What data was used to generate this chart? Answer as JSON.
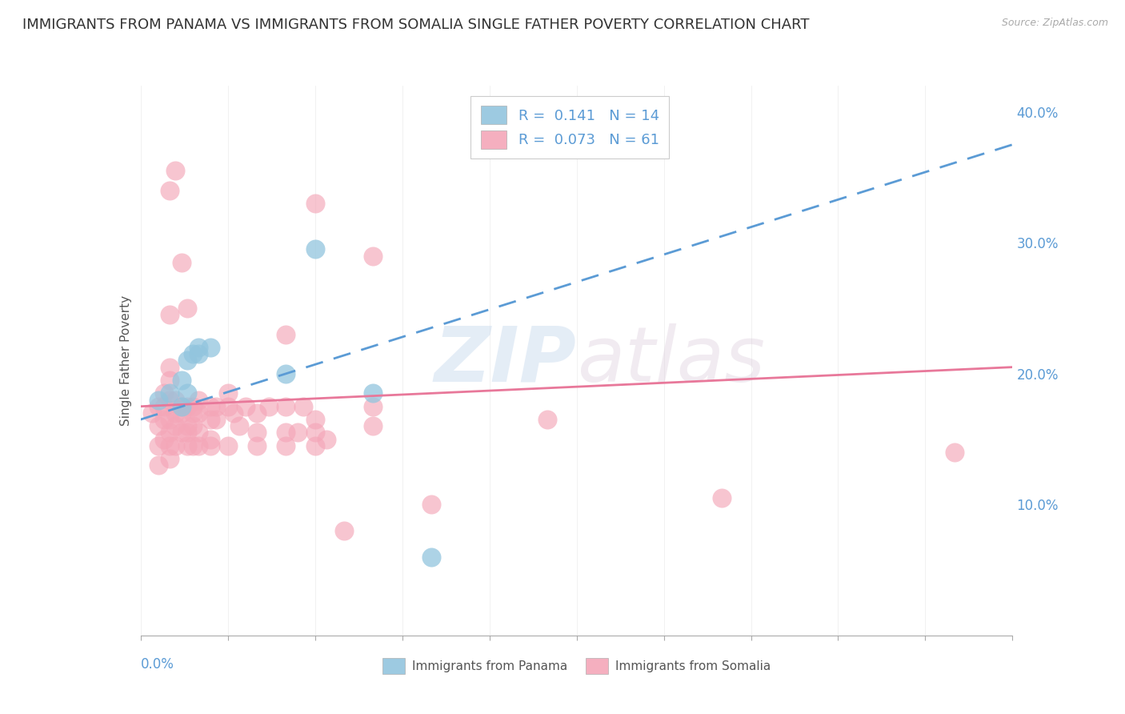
{
  "title": "IMMIGRANTS FROM PANAMA VS IMMIGRANTS FROM SOMALIA SINGLE FATHER POVERTY CORRELATION CHART",
  "source": "Source: ZipAtlas.com",
  "ylabel": "Single Father Poverty",
  "right_yticks": [
    "40.0%",
    "30.0%",
    "20.0%",
    "10.0%"
  ],
  "right_ytick_vals": [
    0.4,
    0.3,
    0.2,
    0.1
  ],
  "xlim": [
    0.0,
    0.15
  ],
  "ylim": [
    0.0,
    0.42
  ],
  "panama_color": "#92c5de",
  "somalia_color": "#f4a6b8",
  "background_color": "#ffffff",
  "grid_color": "#d8d8d8",
  "panama_points": [
    [
      0.005,
      0.185
    ],
    [
      0.007,
      0.175
    ],
    [
      0.007,
      0.195
    ],
    [
      0.008,
      0.185
    ],
    [
      0.008,
      0.21
    ],
    [
      0.009,
      0.215
    ],
    [
      0.01,
      0.22
    ],
    [
      0.01,
      0.215
    ],
    [
      0.012,
      0.22
    ],
    [
      0.025,
      0.2
    ],
    [
      0.03,
      0.295
    ],
    [
      0.04,
      0.185
    ],
    [
      0.05,
      0.06
    ],
    [
      0.003,
      0.18
    ]
  ],
  "somalia_points": [
    [
      0.002,
      0.17
    ],
    [
      0.003,
      0.145
    ],
    [
      0.003,
      0.16
    ],
    [
      0.003,
      0.175
    ],
    [
      0.004,
      0.15
    ],
    [
      0.004,
      0.165
    ],
    [
      0.004,
      0.175
    ],
    [
      0.004,
      0.185
    ],
    [
      0.005,
      0.145
    ],
    [
      0.005,
      0.155
    ],
    [
      0.005,
      0.165
    ],
    [
      0.005,
      0.18
    ],
    [
      0.005,
      0.195
    ],
    [
      0.005,
      0.205
    ],
    [
      0.005,
      0.245
    ],
    [
      0.006,
      0.145
    ],
    [
      0.006,
      0.16
    ],
    [
      0.006,
      0.17
    ],
    [
      0.006,
      0.18
    ],
    [
      0.007,
      0.155
    ],
    [
      0.007,
      0.17
    ],
    [
      0.007,
      0.175
    ],
    [
      0.007,
      0.285
    ],
    [
      0.008,
      0.145
    ],
    [
      0.008,
      0.16
    ],
    [
      0.008,
      0.175
    ],
    [
      0.009,
      0.145
    ],
    [
      0.009,
      0.16
    ],
    [
      0.009,
      0.17
    ],
    [
      0.009,
      0.175
    ],
    [
      0.01,
      0.155
    ],
    [
      0.01,
      0.17
    ],
    [
      0.01,
      0.18
    ],
    [
      0.012,
      0.15
    ],
    [
      0.012,
      0.165
    ],
    [
      0.012,
      0.175
    ],
    [
      0.013,
      0.165
    ],
    [
      0.013,
      0.175
    ],
    [
      0.015,
      0.175
    ],
    [
      0.015,
      0.185
    ],
    [
      0.016,
      0.17
    ],
    [
      0.017,
      0.16
    ],
    [
      0.018,
      0.175
    ],
    [
      0.02,
      0.155
    ],
    [
      0.02,
      0.17
    ],
    [
      0.022,
      0.175
    ],
    [
      0.025,
      0.155
    ],
    [
      0.025,
      0.175
    ],
    [
      0.025,
      0.23
    ],
    [
      0.027,
      0.155
    ],
    [
      0.028,
      0.175
    ],
    [
      0.03,
      0.155
    ],
    [
      0.03,
      0.165
    ],
    [
      0.03,
      0.33
    ],
    [
      0.032,
      0.15
    ],
    [
      0.035,
      0.08
    ],
    [
      0.04,
      0.16
    ],
    [
      0.04,
      0.175
    ],
    [
      0.04,
      0.29
    ],
    [
      0.05,
      0.1
    ],
    [
      0.07,
      0.165
    ],
    [
      0.1,
      0.105
    ],
    [
      0.14,
      0.14
    ],
    [
      0.005,
      0.135
    ],
    [
      0.008,
      0.155
    ],
    [
      0.01,
      0.145
    ],
    [
      0.003,
      0.13
    ],
    [
      0.012,
      0.145
    ],
    [
      0.015,
      0.145
    ],
    [
      0.02,
      0.145
    ],
    [
      0.025,
      0.145
    ],
    [
      0.03,
      0.145
    ],
    [
      0.005,
      0.34
    ],
    [
      0.006,
      0.355
    ],
    [
      0.008,
      0.25
    ]
  ],
  "title_fontsize": 13,
  "axis_label_fontsize": 11,
  "tick_fontsize": 12,
  "source_fontsize": 9
}
